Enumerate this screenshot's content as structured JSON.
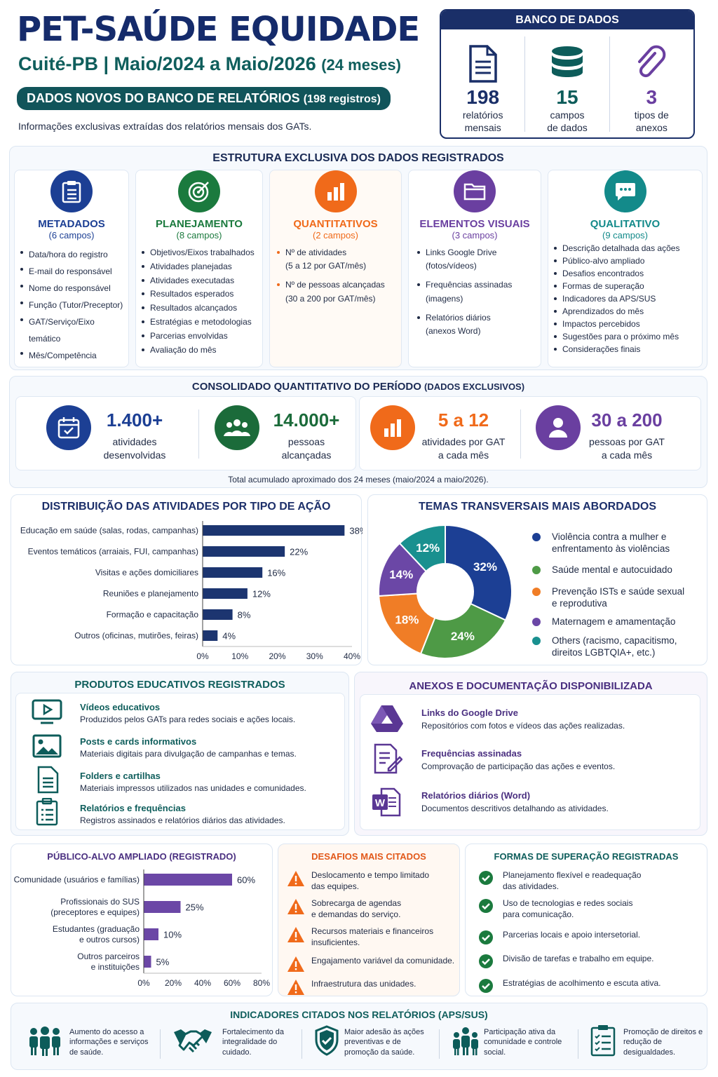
{
  "header": {
    "title": "PET-SAÚDE EQUIDADE",
    "subtitle": "Cuité-PB | Maio/2024 a Maio/2026",
    "subtitle_small": "(24 meses)",
    "pill": "DADOS NOVOS DO BANCO DE RELATÓRIOS",
    "pill_small": "(198 registros)",
    "note": "Informações exclusivas extraídas dos relatórios mensais dos GATs."
  },
  "banco": {
    "title": "BANCO DE DADOS",
    "items": [
      {
        "value": "198",
        "label1": "relatórios",
        "label2": "mensais",
        "icon": "document-icon"
      },
      {
        "value": "15",
        "label1": "campos",
        "label2": "de dados",
        "icon": "database-icon"
      },
      {
        "value": "3",
        "label1": "tipos de",
        "label2": "anexos",
        "icon": "paperclip-icon"
      }
    ]
  },
  "estrutura": {
    "title": "ESTRUTURA EXCLUSIVA DOS DADOS REGISTRADOS",
    "columns": [
      {
        "title": "METADADOS",
        "count": "(6 campos)",
        "color": "#1c3f94",
        "items": [
          "Data/hora do registro",
          "E-mail do responsável",
          "Nome do responsável",
          "Função (Tutor/Preceptor)",
          "GAT/Serviço/Eixo temático",
          "Mês/Competência"
        ]
      },
      {
        "title": "PLANEJAMENTO",
        "count": "(8 campos)",
        "color": "#1b7a3e",
        "items": [
          "Objetivos/Eixos trabalhados",
          "Atividades planejadas",
          "Atividades executadas",
          "Resultados esperados",
          "Resultados alcançados",
          "Estratégias e metodologias",
          "Parcerias envolvidas",
          "Avaliação do mês"
        ]
      },
      {
        "title": "QUANTITATIVOS",
        "count": "(2 campos)",
        "color": "#f06a1a",
        "items": [
          "Nº de atividades",
          "(5 a 12 por GAT/mês)",
          "Nº de pessoas alcançadas",
          "(30 a 200 por GAT/mês)"
        ]
      },
      {
        "title": "ELEMENTOS VISUAIS",
        "count": "(3 campos)",
        "color": "#6a3fa0",
        "items": [
          "Links Google Drive",
          "(fotos/vídeos)",
          "Frequências assinadas",
          "(imagens)",
          "Relatórios diários",
          "(anexos Word)"
        ]
      },
      {
        "title": "QUALITATIVO",
        "count": "(9 campos)",
        "color": "#138a8a",
        "items": [
          "Descrição detalhada das ações",
          "Público-alvo ampliado",
          "Desafios encontrados",
          "Formas de superação",
          "Indicadores da APS/SUS",
          "Aprendizados do mês",
          "Impactos percebidos",
          "Sugestões para o próximo mês",
          "Considerações finais"
        ]
      }
    ]
  },
  "consolidado": {
    "title": "CONSOLIDADO QUANTITATIVO DO PERÍODO",
    "title_small": "(DADOS EXCLUSIVOS)",
    "items": [
      {
        "value": "1.400+",
        "l1": "atividades",
        "l2": "desenvolvidas",
        "color": "#1c3f94"
      },
      {
        "value": "14.000+",
        "l1": "pessoas",
        "l2": "alcançadas",
        "color": "#1b6b3a"
      },
      {
        "value": "5 a 12",
        "l1": "atividades por GAT",
        "l2": "a cada mês",
        "color": "#f06a1a"
      },
      {
        "value": "30 a 200",
        "l1": "pessoas por GAT",
        "l2": "a cada mês",
        "color": "#6a3fa0"
      }
    ],
    "footer": "Total acumulado aproximado dos 24 meses (maio/2024 a maio/2026)."
  },
  "chart_data": [
    {
      "type": "bar",
      "title": "DISTRIBUIÇÃO DAS ATIVIDADES POR TIPO DE AÇÃO",
      "categories": [
        "Educação em saúde (salas, rodas, campanhas)",
        "Eventos temáticos (arraiais, FUI, campanhas)",
        "Visitas e ações domiciliares",
        "Reuniões e planejamento",
        "Formação e capacitação",
        "Outros (oficinas, mutirões, feiras)"
      ],
      "values": [
        38,
        22,
        16,
        12,
        8,
        4
      ],
      "xlim": [
        0,
        40
      ],
      "xticks": [
        "0%",
        "10%",
        "20%",
        "30%",
        "40%"
      ],
      "orientation": "horizontal",
      "color": "#1c3570"
    },
    {
      "type": "pie",
      "title": "TEMAS TRANSVERSAIS MAIS ABORDADOS",
      "categories": [
        "Violência contra a mulher e enfrentamento às violências",
        "Saúde mental e autocuidado",
        "Prevenção ISTs e saúde sexual e reprodutiva",
        "Maternagem e amamentação",
        "Others (racismo, capacitismo, direitos LGBTQIA+, etc.)"
      ],
      "values": [
        32,
        24,
        18,
        14,
        12
      ],
      "labels": [
        "32%",
        "24%",
        "18%",
        "14%",
        "12%"
      ],
      "colors": [
        "#1c3f94",
        "#4e9a46",
        "#f07d26",
        "#6b47a6",
        "#19908f"
      ]
    },
    {
      "type": "bar",
      "title": "PÚBLICO-ALVO AMPLIADO (REGISTRADO)",
      "categories": [
        "Comunidade (usuários e famílias)",
        "Profissionais do SUS (preceptores e equipes)",
        "Estudantes (graduação e outros cursos)",
        "Outros parceiros e instituições"
      ],
      "values": [
        60,
        25,
        10,
        5
      ],
      "xlim": [
        0,
        80
      ],
      "xticks": [
        "0%",
        "20%",
        "40%",
        "60%",
        "80%"
      ],
      "orientation": "horizontal",
      "color": "#6b47a6"
    }
  ],
  "produtos": {
    "title": "PRODUTOS EDUCATIVOS REGISTRADOS",
    "items": [
      {
        "t": "Vídeos educativos",
        "d": "Produzidos pelos GATs para redes sociais e ações locais.",
        "icon": "video-icon"
      },
      {
        "t": "Posts e cards informativos",
        "d": "Materiais digitais para divulgação de campanhas e temas.",
        "icon": "image-icon"
      },
      {
        "t": "Folders e cartilhas",
        "d": "Materiais impressos utilizados nas unidades e comunidades.",
        "icon": "document-icon"
      },
      {
        "t": "Relatórios e frequências",
        "d": "Registros assinados e relatórios diários das atividades.",
        "icon": "clipboard-icon"
      }
    ]
  },
  "anexos": {
    "title": "ANEXOS E DOCUMENTAÇÃO DISPONIBILIZADA",
    "items": [
      {
        "t": "Links do Google Drive",
        "d": "Repositórios com fotos e vídeos das ações realizadas.",
        "icon": "drive-icon"
      },
      {
        "t": "Frequências assinadas",
        "d": "Comprovação de participação das ações e eventos.",
        "icon": "signed-form-icon"
      },
      {
        "t": "Relatórios diários (Word)",
        "d": "Documentos descritivos detalhando as atividades.",
        "icon": "word-icon"
      }
    ]
  },
  "desafios": {
    "title": "DESAFIOS MAIS CITADOS",
    "items": [
      "Deslocamento e tempo limitado das equipes.",
      "Sobrecarga de agendas e demandas do serviço.",
      "Recursos materiais e financeiros insuficientes.",
      "Engajamento variável da comunidade.",
      "Infraestrutura das unidades."
    ]
  },
  "superacao": {
    "title": "FORMAS DE SUPERAÇÃO REGISTRADAS",
    "items": [
      "Planejamento flexível e readequação das atividades.",
      "Uso de tecnologias e redes sociais para comunicação.",
      "Parcerias locais e apoio intersetorial.",
      "Divisão de tarefas e trabalho em equipe.",
      "Estratégias de acolhimento e escuta ativa."
    ]
  },
  "indicadores": {
    "title": "INDICADORES CITADOS NOS RELATÓRIOS (APS/SUS)",
    "items": [
      {
        "t": "Aumento do acesso a informações e serviços de saúde.",
        "icon": "people-icon"
      },
      {
        "t": "Fortalecimento da integralidade do cuidado.",
        "icon": "handshake-icon"
      },
      {
        "t": "Maior adesão às ações preventivas e de promoção da saúde.",
        "icon": "shield-check-icon"
      },
      {
        "t": "Participação ativa da comunidade e controle social.",
        "icon": "community-icon"
      },
      {
        "t": "Promoção de direitos e redução de desigualdades.",
        "icon": "checklist-icon"
      }
    ]
  }
}
